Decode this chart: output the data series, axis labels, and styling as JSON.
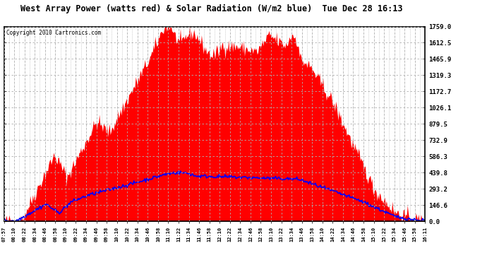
{
  "title": "West Array Power (watts red) & Solar Radiation (W/m2 blue)  Tue Dec 28 16:13",
  "copyright": "Copyright 2010 Cartronics.com",
  "bg_color": "#ffffff",
  "plot_bg_color": "#ffffff",
  "grid_color": "#b0b0b0",
  "red_color": "#ff0000",
  "blue_color": "#0000ff",
  "ymin": 0.0,
  "ymax": 1759.0,
  "yticks": [
    0.0,
    146.6,
    293.2,
    439.8,
    586.3,
    732.9,
    879.5,
    1026.1,
    1172.7,
    1319.3,
    1465.9,
    1612.5,
    1759.0
  ],
  "xtick_labels": [
    "07:57",
    "08:10",
    "08:22",
    "08:34",
    "08:46",
    "08:58",
    "09:10",
    "09:22",
    "09:34",
    "09:46",
    "09:58",
    "10:10",
    "10:22",
    "10:34",
    "10:46",
    "10:58",
    "11:10",
    "11:22",
    "11:34",
    "11:46",
    "11:58",
    "12:10",
    "12:22",
    "12:34",
    "12:46",
    "12:58",
    "13:10",
    "13:22",
    "13:34",
    "13:46",
    "13:58",
    "14:10",
    "14:22",
    "14:34",
    "14:46",
    "14:58",
    "15:10",
    "15:22",
    "15:34",
    "15:46",
    "15:58",
    "16:11"
  ]
}
